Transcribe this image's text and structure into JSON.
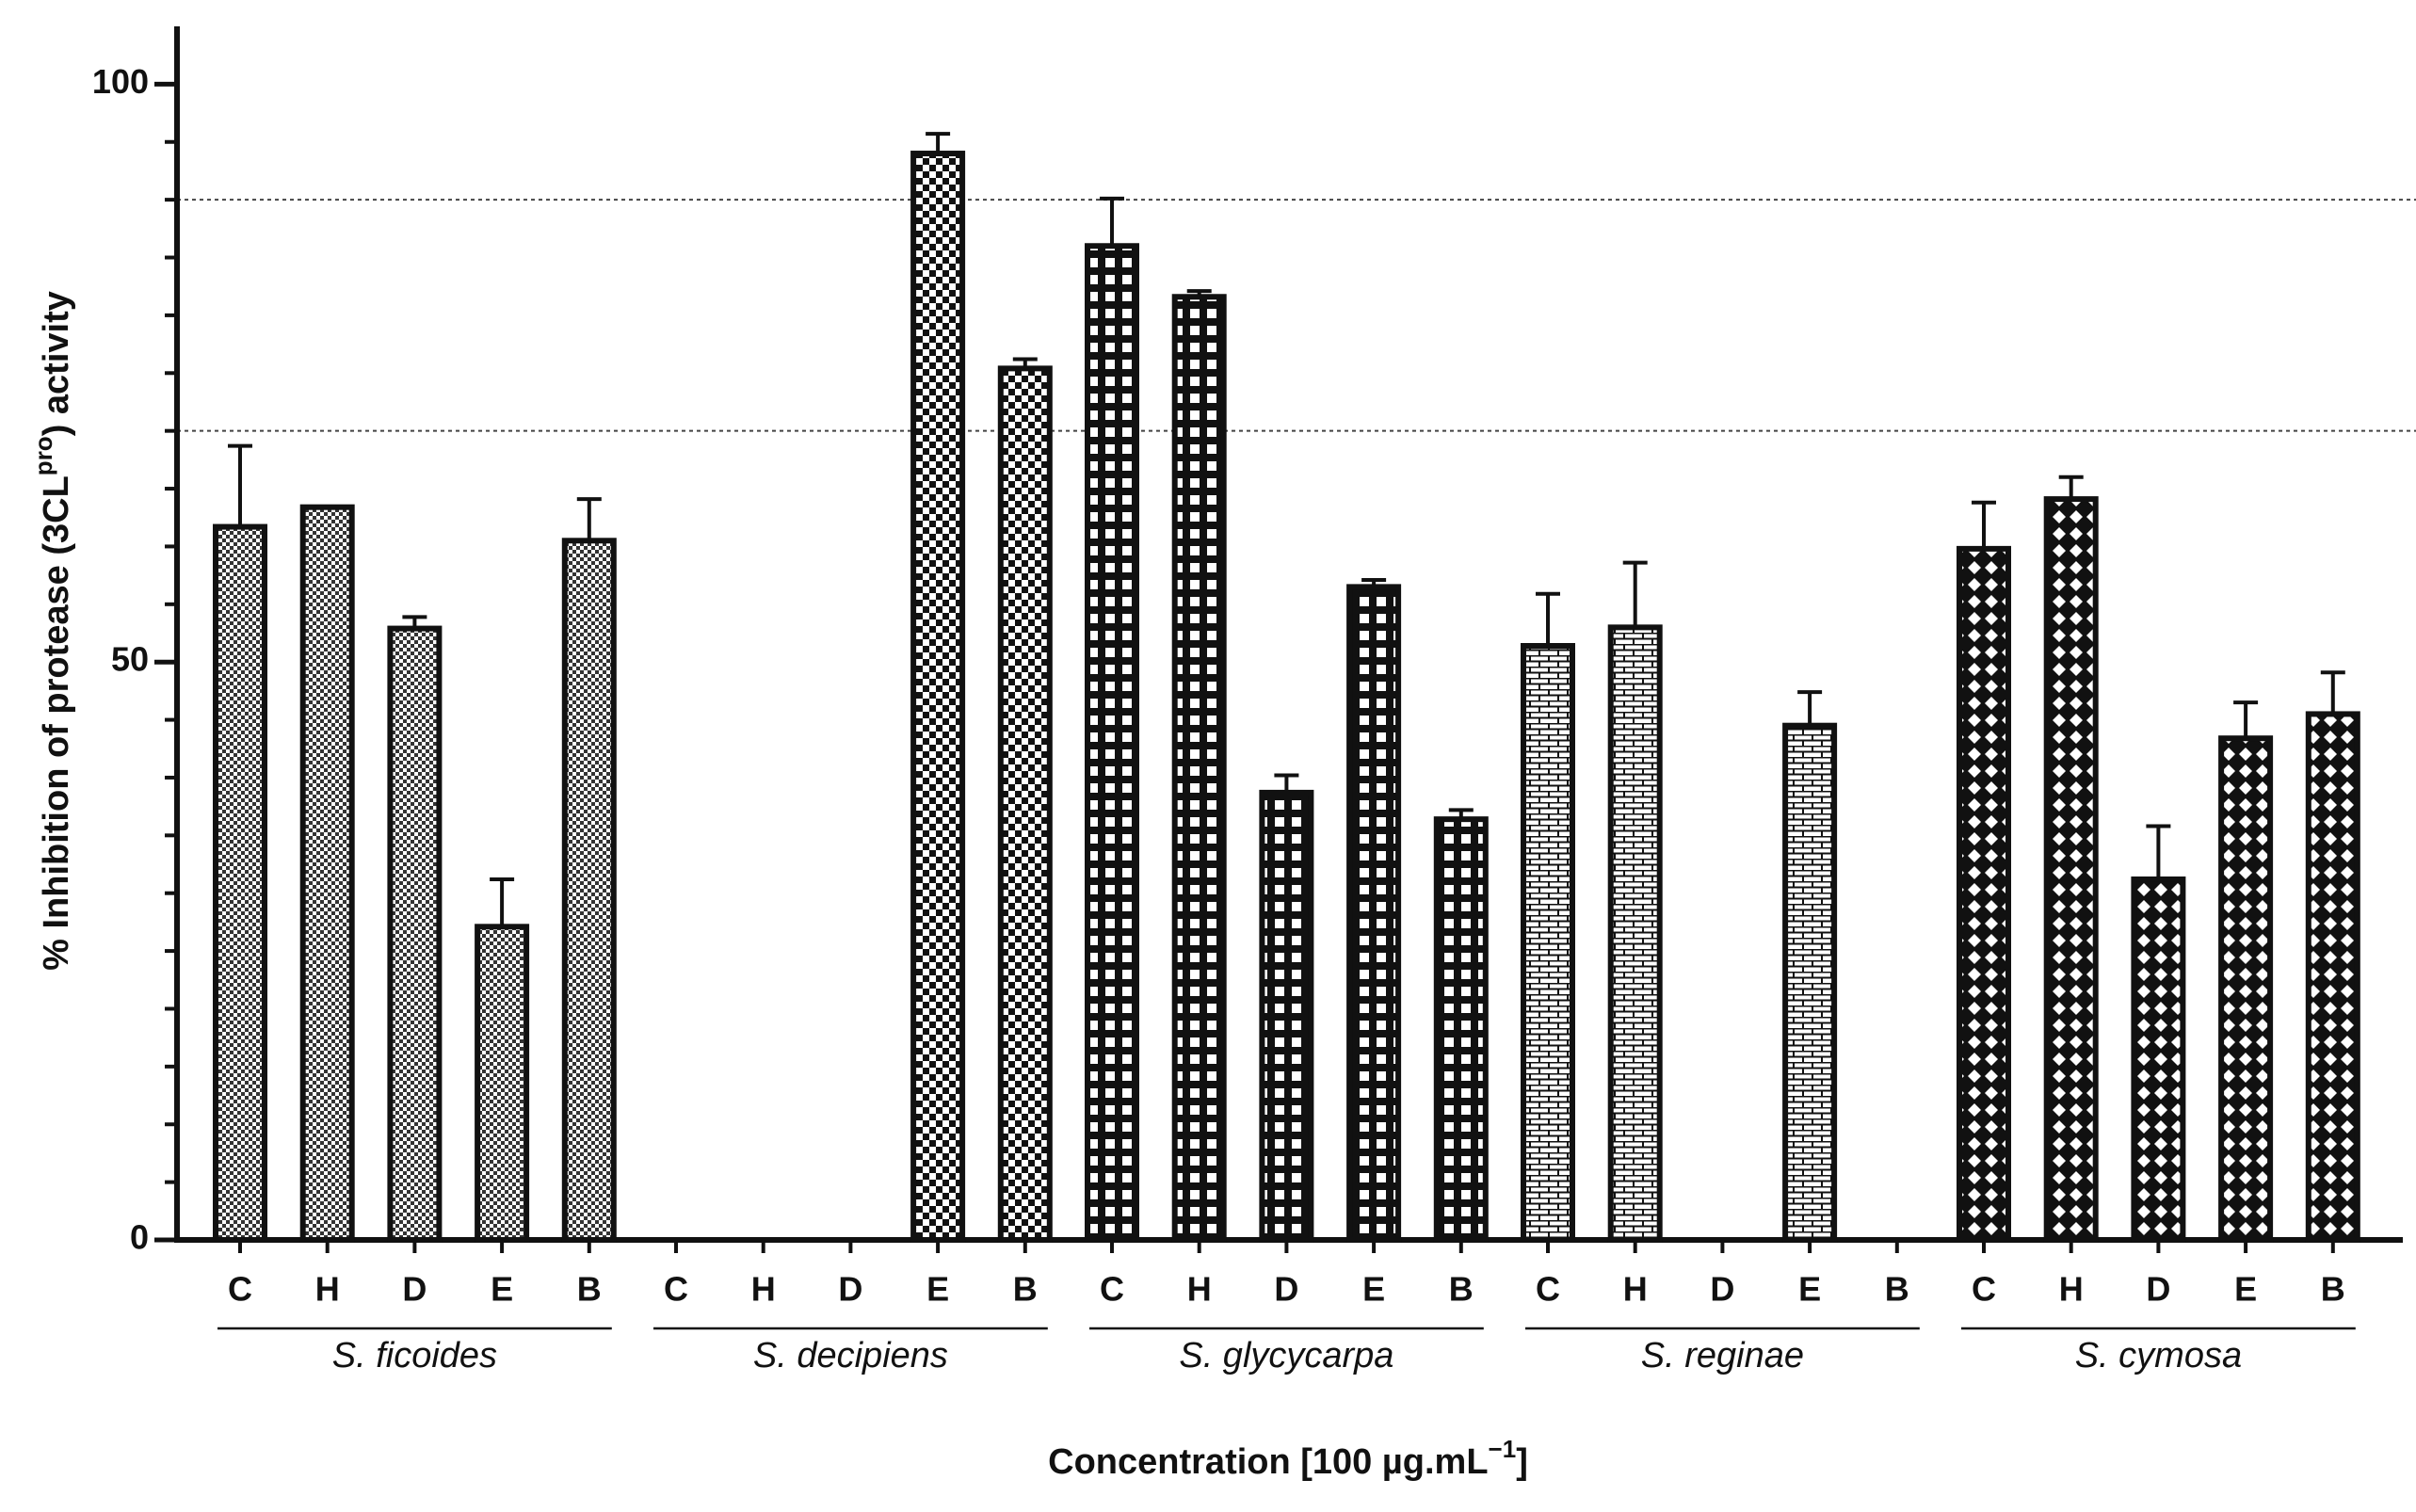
{
  "chart_data": {
    "type": "grouped-bar",
    "ylabel": {
      "text": "% Inhibition of protease (3CL",
      "sup": "pro",
      "tail": ") activity"
    },
    "xlabel": {
      "text": "Concentration [100 µg.mL",
      "sup": "−1",
      "tail": "]"
    },
    "ylim": [
      0,
      105
    ],
    "yticks": [
      0,
      50,
      100
    ],
    "minor_yticks": [
      5,
      10,
      15,
      20,
      25,
      30,
      35,
      40,
      45,
      55,
      60,
      65,
      70,
      75,
      80,
      85,
      90,
      95
    ],
    "reference_lines": [
      90,
      70
    ],
    "color": "#111111",
    "groups": [
      {
        "name": "S. ficoides",
        "categories": [
          "C",
          "H",
          "D",
          "E",
          "B"
        ],
        "values": [
          61.7,
          63.4,
          52.9,
          27.1,
          60.5
        ],
        "errors": [
          7.0,
          null,
          1.0,
          4.1,
          3.6
        ]
      },
      {
        "name": "S. decipiens",
        "categories": [
          "C",
          "H",
          "D",
          "E",
          "B"
        ],
        "values": [
          null,
          null,
          null,
          94.0,
          75.4
        ],
        "errors": [
          null,
          null,
          null,
          1.7,
          0.8
        ]
      },
      {
        "name": "S. glycycarpa",
        "categories": [
          "C",
          "H",
          "D",
          "E",
          "B"
        ],
        "values": [
          86.0,
          81.6,
          38.7,
          56.5,
          36.4
        ],
        "errors": [
          4.1,
          0.5,
          1.5,
          0.6,
          0.8
        ]
      },
      {
        "name": "S. reginae",
        "categories": [
          "C",
          "H",
          "D",
          "E",
          "B"
        ],
        "values": [
          51.4,
          53.0,
          null,
          44.5,
          null
        ],
        "errors": [
          4.5,
          5.6,
          null,
          2.9,
          null
        ]
      },
      {
        "name": "S. cymosa",
        "categories": [
          "C",
          "H",
          "D",
          "E",
          "B"
        ],
        "values": [
          59.8,
          64.1,
          31.2,
          43.4,
          45.5
        ],
        "errors": [
          4.0,
          1.9,
          4.6,
          3.1,
          3.6
        ]
      }
    ]
  }
}
